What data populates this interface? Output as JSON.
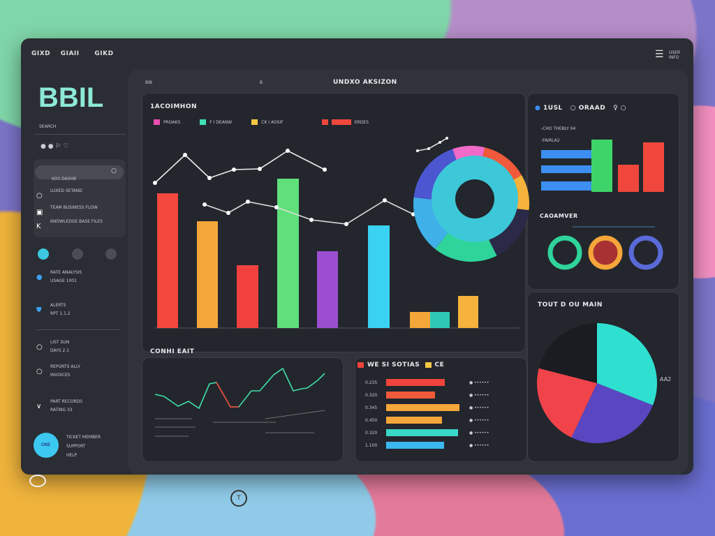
{
  "header": {
    "nav": [
      "GIXD",
      "GIAII",
      "GIKD"
    ],
    "right_label": "USER INFO"
  },
  "sidebar": {
    "logo": "BBIL",
    "sub": "SEARCH",
    "search_label": "KOS DASHB",
    "items": [
      {
        "icon": "circle-icon",
        "label": "LUXED SETAND"
      },
      {
        "icon": "printer-icon",
        "label": "TEAM BUSINESS FLOW"
      },
      {
        "icon": "k-icon",
        "label": "KNOWLEDGE BASE FILES"
      },
      {
        "icon": "user-icon",
        "label": "RATE ANALYSIS",
        "sub": "USAGE 1001"
      },
      {
        "icon": "shield-icon",
        "label": "ALERTS",
        "sub": "RPT 1.1.2"
      },
      {
        "icon": "circle-icon",
        "label": "LIST SUN",
        "sub": "DAYS 2.1"
      },
      {
        "icon": "circle-icon",
        "label": "REPORTS ALLY",
        "sub": "INVOICES"
      },
      {
        "icon": "chevron-down-icon",
        "label": "PART RECORDS",
        "sub": "RATING 33"
      }
    ],
    "avatar_label": "ONE",
    "footer": [
      "TICKET MEMBER",
      "SUPPORT",
      "HELP"
    ]
  },
  "panel": {
    "tab_left": "BIB",
    "tab_mid": "B",
    "title": "UNDXO AKSIZON"
  },
  "main_chart": {
    "title": "1ACOIMHON",
    "legend": [
      {
        "label": "PROAKS",
        "color": "#e84fb0"
      },
      {
        "label": "F I DEANW",
        "color": "#3fe0b4"
      },
      {
        "label": "CK I AOSIF",
        "color": "#f5c842"
      },
      {
        "label": "ERDES",
        "color": "#f0483c"
      }
    ]
  },
  "right_card": {
    "title1": "1USL",
    "title2": "ORAAD",
    "sub1": "-CHO THEBLY 04",
    "sub2": "-FAIRLA2",
    "section": "CAOAMVER"
  },
  "pie_card": {
    "title": "TOUT  D  OU MAIN",
    "label": "AA2"
  },
  "line_card": {
    "title": "CONHI EAIT"
  },
  "list_card": {
    "title": "WE SI SOTIAS",
    "tag": "CE",
    "rows": [
      "0.235",
      "0.320",
      "0.345",
      "0.450",
      "0.320",
      "1.100"
    ]
  },
  "chart_data": [
    {
      "type": "bar",
      "name": "main-bars",
      "values": [
        193,
        153,
        90,
        214,
        110,
        147,
        23,
        23,
        46
      ],
      "colors": [
        "#f4473e",
        "#f5a63a",
        "#f0413f",
        "#5fe07a",
        "#9b4fd0",
        "#3ad2f2",
        "#f5a63a",
        "#2ec9b6",
        "#f5b23c"
      ]
    },
    {
      "type": "line",
      "name": "main-line-1",
      "values": [
        208,
        248,
        215,
        227,
        228,
        254,
        227
      ]
    },
    {
      "type": "line",
      "name": "main-line-2",
      "values": [
        177,
        165,
        181,
        173,
        155,
        149,
        183,
        163
      ]
    },
    {
      "type": "pie",
      "name": "donut",
      "values": [
        0.09,
        0.13,
        0.1,
        0.16,
        0.18,
        0.16,
        0.18
      ],
      "colors": [
        "#f06ac8",
        "#f05a3a",
        "#f5b23c",
        "#2a2a48",
        "#2fd49a",
        "#3fb0e8",
        "#4b56d0"
      ]
    },
    {
      "type": "bar",
      "name": "right-hbars",
      "values": [
        85,
        80,
        90
      ],
      "color": "#3c8ff0"
    },
    {
      "type": "bar",
      "name": "right-vbars",
      "values": [
        75,
        39,
        71
      ],
      "colors": [
        "#3fd46a",
        "#f0473c",
        "#f0473c"
      ]
    },
    {
      "type": "pie",
      "name": "rings",
      "values": [
        1,
        1,
        1
      ],
      "colors": [
        "#2fd49a",
        "#f5a63a",
        "#5a6ad8"
      ]
    },
    {
      "type": "pie",
      "name": "pie",
      "values": [
        0.31,
        0.26,
        0.22,
        0.21
      ],
      "colors": [
        "#2fe0d0",
        "#5a46c0",
        "#f0444a",
        "#1a1c22"
      ]
    },
    {
      "type": "line",
      "name": "trend",
      "values": [
        97,
        94,
        80,
        87,
        77,
        112,
        114,
        79,
        79,
        102,
        102,
        125,
        134,
        102,
        105,
        106,
        117,
        127
      ]
    },
    {
      "type": "bar",
      "name": "list-bars",
      "values": [
        84,
        70,
        105,
        80,
        103,
        83
      ],
      "colors": [
        "#f0443c",
        "#f05a3a",
        "#f5a63a",
        "#f5a63a",
        "#3ad8c8",
        "#3cb8f0"
      ]
    }
  ]
}
